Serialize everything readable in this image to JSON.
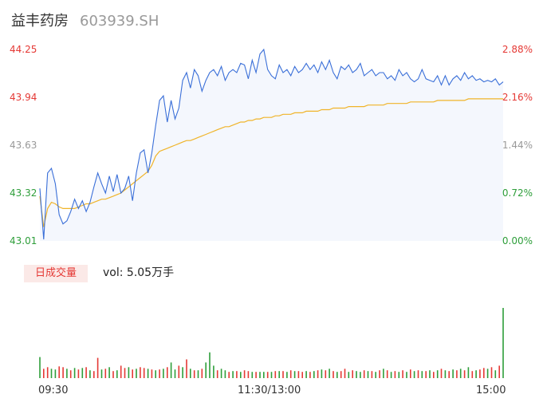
{
  "header": {
    "name": "益丰药房",
    "code": "603939.SH"
  },
  "volume_panel": {
    "tab_label": "日成交量",
    "vol_label": "vol: 5.05万手"
  },
  "time_labels": [
    "09:30",
    "11:30/13:00",
    "15:00"
  ],
  "colors": {
    "price": "#3a6fd8",
    "avg": "#f0b429",
    "up": "#e53935",
    "down": "#2e9e3a",
    "neutral": "#999999"
  },
  "chart_data": [
    {
      "type": "line",
      "title": "",
      "y_left_ticks": [
        "44.25",
        "43.94",
        "43.63",
        "43.32",
        "43.01"
      ],
      "y_right_ticks": [
        "2.88%",
        "2.16%",
        "1.44%",
        "0.72%",
        "0.00%"
      ],
      "ylim": [
        43.01,
        44.25
      ],
      "x_ticks": [
        "09:30",
        "11:30/13:00",
        "15:00"
      ],
      "series": [
        {
          "name": "price",
          "x": [
            0,
            2,
            4,
            6,
            8,
            10,
            12,
            14,
            16,
            18,
            20,
            22,
            24,
            26,
            28,
            30,
            32,
            34,
            36,
            38,
            40,
            42,
            44,
            46,
            48,
            50,
            52,
            54,
            56,
            58,
            60,
            62,
            64,
            66,
            68,
            70,
            72,
            74,
            76,
            78,
            80,
            82,
            84,
            86,
            88,
            90,
            92,
            94,
            96,
            98,
            100,
            102,
            104,
            106,
            108,
            110,
            112,
            114,
            116,
            118,
            120,
            122,
            124,
            126,
            128,
            130,
            132,
            134,
            136,
            138,
            140,
            142,
            144,
            146,
            148,
            150,
            152,
            154,
            156,
            158,
            160,
            162,
            164,
            166,
            168,
            170,
            172,
            174,
            176,
            178,
            180,
            182,
            184,
            186,
            188,
            190,
            192,
            194,
            196,
            198,
            200,
            202,
            204,
            206,
            208,
            210,
            212,
            214,
            216,
            218,
            220,
            222,
            224,
            226,
            228,
            230,
            232,
            234,
            236,
            238,
            240
          ],
          "values": [
            43.35,
            43.02,
            43.45,
            43.48,
            43.38,
            43.18,
            43.12,
            43.14,
            43.2,
            43.28,
            43.22,
            43.27,
            43.2,
            43.26,
            43.36,
            43.45,
            43.38,
            43.32,
            43.43,
            43.33,
            43.44,
            43.32,
            43.35,
            43.43,
            43.27,
            43.45,
            43.58,
            43.6,
            43.45,
            43.58,
            43.76,
            43.92,
            43.95,
            43.78,
            43.92,
            43.8,
            43.87,
            44.05,
            44.1,
            44.0,
            44.12,
            44.08,
            43.98,
            44.05,
            44.1,
            44.12,
            44.08,
            44.14,
            44.05,
            44.1,
            44.12,
            44.1,
            44.16,
            44.15,
            44.06,
            44.18,
            44.1,
            44.22,
            44.25,
            44.12,
            44.08,
            44.06,
            44.15,
            44.1,
            44.12,
            44.08,
            44.14,
            44.1,
            44.12,
            44.16,
            44.12,
            44.15,
            44.1,
            44.17,
            44.12,
            44.18,
            44.1,
            44.06,
            44.14,
            44.12,
            44.15,
            44.1,
            44.12,
            44.16,
            44.08,
            44.1,
            44.12,
            44.08,
            44.1,
            44.1,
            44.06,
            44.08,
            44.05,
            44.12,
            44.08,
            44.1,
            44.06,
            44.04,
            44.06,
            44.12,
            44.06,
            44.05,
            44.04,
            44.08,
            44.02,
            44.08,
            44.02,
            44.06,
            44.08,
            44.05,
            44.1,
            44.06,
            44.08,
            44.05,
            44.06,
            44.04,
            44.05,
            44.04,
            44.06,
            44.02,
            44.04
          ]
        },
        {
          "name": "avg",
          "x": [
            0,
            2,
            4,
            6,
            8,
            10,
            12,
            14,
            16,
            18,
            20,
            22,
            24,
            26,
            28,
            30,
            32,
            34,
            36,
            38,
            40,
            42,
            44,
            46,
            48,
            50,
            52,
            54,
            56,
            58,
            60,
            62,
            64,
            66,
            68,
            70,
            72,
            74,
            76,
            78,
            80,
            82,
            84,
            86,
            88,
            90,
            92,
            94,
            96,
            98,
            100,
            102,
            104,
            106,
            108,
            110,
            112,
            114,
            116,
            118,
            120,
            122,
            124,
            126,
            128,
            130,
            132,
            134,
            136,
            138,
            140,
            142,
            144,
            146,
            148,
            150,
            152,
            154,
            156,
            158,
            160,
            162,
            164,
            166,
            168,
            170,
            172,
            174,
            176,
            178,
            180,
            182,
            184,
            186,
            188,
            190,
            192,
            194,
            196,
            198,
            200,
            202,
            204,
            206,
            208,
            210,
            212,
            214,
            216,
            218,
            220,
            222,
            224,
            226,
            228,
            230,
            232,
            234,
            236,
            238,
            240
          ],
          "values": [
            43.3,
            43.1,
            43.22,
            43.26,
            43.25,
            43.23,
            43.22,
            43.22,
            43.22,
            43.22,
            43.23,
            43.24,
            43.25,
            43.25,
            43.26,
            43.27,
            43.28,
            43.28,
            43.29,
            43.3,
            43.31,
            43.32,
            43.34,
            43.36,
            43.38,
            43.4,
            43.42,
            43.44,
            43.46,
            43.5,
            43.56,
            43.59,
            43.6,
            43.61,
            43.62,
            43.63,
            43.64,
            43.65,
            43.66,
            43.66,
            43.67,
            43.68,
            43.69,
            43.7,
            43.71,
            43.72,
            43.73,
            43.74,
            43.75,
            43.75,
            43.76,
            43.77,
            43.78,
            43.78,
            43.79,
            43.79,
            43.8,
            43.8,
            43.81,
            43.81,
            43.81,
            43.82,
            43.82,
            43.83,
            43.83,
            43.83,
            43.84,
            43.84,
            43.84,
            43.85,
            43.85,
            43.85,
            43.85,
            43.86,
            43.86,
            43.86,
            43.87,
            43.87,
            43.87,
            43.87,
            43.88,
            43.88,
            43.88,
            43.88,
            43.88,
            43.89,
            43.89,
            43.89,
            43.89,
            43.89,
            43.9,
            43.9,
            43.9,
            43.9,
            43.9,
            43.9,
            43.91,
            43.91,
            43.91,
            43.91,
            43.91,
            43.91,
            43.91,
            43.92,
            43.92,
            43.92,
            43.92,
            43.92,
            43.92,
            43.92,
            43.92,
            43.93,
            43.93,
            43.93,
            43.93,
            43.93,
            43.93,
            43.93,
            43.93,
            43.93,
            43.93
          ]
        }
      ]
    },
    {
      "type": "bar",
      "title": "日成交量",
      "x": [
        0,
        2,
        4,
        6,
        8,
        10,
        12,
        14,
        16,
        18,
        20,
        22,
        24,
        26,
        28,
        30,
        32,
        34,
        36,
        38,
        40,
        42,
        44,
        46,
        48,
        50,
        52,
        54,
        56,
        58,
        60,
        62,
        64,
        66,
        68,
        70,
        72,
        74,
        76,
        78,
        80,
        82,
        84,
        86,
        88,
        90,
        92,
        94,
        96,
        98,
        100,
        102,
        104,
        106,
        108,
        110,
        112,
        114,
        116,
        118,
        120,
        122,
        124,
        126,
        128,
        130,
        132,
        134,
        136,
        138,
        140,
        142,
        144,
        146,
        148,
        150,
        152,
        154,
        156,
        158,
        160,
        162,
        164,
        166,
        168,
        170,
        172,
        174,
        176,
        178,
        180,
        182,
        184,
        186,
        188,
        190,
        192,
        194,
        196,
        198,
        200,
        202,
        204,
        206,
        208,
        210,
        212,
        214,
        216,
        218,
        220,
        222,
        224,
        226,
        228,
        230,
        232,
        234,
        236,
        238,
        240
      ],
      "values": [
        0.27,
        0.12,
        0.14,
        0.12,
        0.11,
        0.15,
        0.14,
        0.12,
        0.1,
        0.13,
        0.11,
        0.13,
        0.14,
        0.1,
        0.09,
        0.26,
        0.11,
        0.12,
        0.14,
        0.09,
        0.1,
        0.16,
        0.13,
        0.14,
        0.11,
        0.12,
        0.14,
        0.13,
        0.12,
        0.11,
        0.1,
        0.11,
        0.12,
        0.14,
        0.2,
        0.11,
        0.16,
        0.14,
        0.24,
        0.12,
        0.1,
        0.1,
        0.12,
        0.2,
        0.33,
        0.16,
        0.1,
        0.12,
        0.1,
        0.08,
        0.09,
        0.09,
        0.08,
        0.1,
        0.09,
        0.08,
        0.08,
        0.08,
        0.08,
        0.08,
        0.08,
        0.09,
        0.09,
        0.09,
        0.08,
        0.1,
        0.09,
        0.09,
        0.08,
        0.09,
        0.08,
        0.09,
        0.1,
        0.11,
        0.1,
        0.12,
        0.09,
        0.08,
        0.09,
        0.12,
        0.08,
        0.1,
        0.09,
        0.08,
        0.1,
        0.09,
        0.09,
        0.08,
        0.1,
        0.12,
        0.1,
        0.08,
        0.09,
        0.08,
        0.1,
        0.08,
        0.11,
        0.09,
        0.1,
        0.09,
        0.09,
        0.1,
        0.08,
        0.1,
        0.12,
        0.1,
        0.09,
        0.11,
        0.1,
        0.12,
        0.1,
        0.14,
        0.09,
        0.1,
        0.11,
        0.13,
        0.12,
        0.14,
        0.1,
        0.16,
        0.9
      ],
      "directions": [
        "d",
        "u",
        "u",
        "d",
        "d",
        "u",
        "u",
        "d",
        "u",
        "d",
        "u",
        "d",
        "u",
        "d",
        "u",
        "u",
        "d",
        "u",
        "d",
        "u",
        "d",
        "u",
        "u",
        "d",
        "u",
        "d",
        "u",
        "u",
        "d",
        "u",
        "d",
        "u",
        "d",
        "u",
        "d",
        "d",
        "u",
        "d",
        "u",
        "d",
        "u",
        "d",
        "u",
        "d",
        "d",
        "d",
        "u",
        "d",
        "d",
        "u",
        "d",
        "u",
        "d",
        "u",
        "u",
        "d",
        "u",
        "d",
        "d",
        "u",
        "d",
        "u",
        "d",
        "u",
        "d",
        "u",
        "d",
        "u",
        "u",
        "d",
        "u",
        "d",
        "u",
        "d",
        "u",
        "d",
        "u",
        "d",
        "u",
        "u",
        "d",
        "u",
        "d",
        "d",
        "u",
        "d",
        "u",
        "d",
        "u",
        "d",
        "u",
        "d",
        "u",
        "d",
        "u",
        "d",
        "u",
        "d",
        "u",
        "d",
        "u",
        "d",
        "u",
        "d",
        "u",
        "d",
        "u",
        "d",
        "u",
        "d",
        "u",
        "d",
        "u",
        "d",
        "u",
        "u",
        "d",
        "u",
        "d",
        "u",
        "d"
      ]
    }
  ]
}
